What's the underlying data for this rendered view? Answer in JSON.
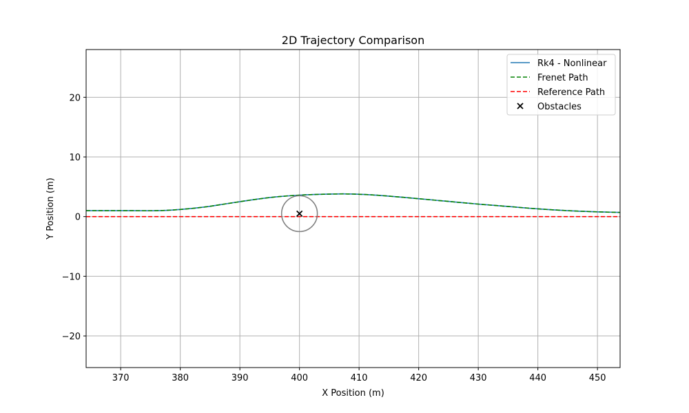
{
  "chart_data": {
    "type": "line",
    "title": "2D Trajectory Comparison",
    "xlabel": "X Position (m)",
    "ylabel": "Y Position (m)",
    "xlim": [
      364.2,
      453.8
    ],
    "ylim": [
      -25.3,
      28.0
    ],
    "xticks": [
      370,
      380,
      390,
      400,
      410,
      420,
      430,
      440,
      450
    ],
    "yticks": [
      -20,
      -10,
      0,
      10,
      20
    ],
    "grid": true,
    "legend_position": "upper right",
    "series": [
      {
        "name": "Rk4 - Nonlinear",
        "style": "solid",
        "color": "#1f77b4",
        "x": [
          364.2,
          370,
          376,
          380,
          384,
          388,
          392,
          396,
          400,
          404,
          408,
          412,
          416,
          420,
          425,
          430,
          435,
          440,
          445,
          450,
          453.8
        ],
        "y": [
          1.0,
          1.0,
          1.0,
          1.2,
          1.6,
          2.2,
          2.8,
          3.3,
          3.6,
          3.75,
          3.8,
          3.65,
          3.35,
          3.0,
          2.55,
          2.1,
          1.7,
          1.3,
          1.0,
          0.8,
          0.7
        ]
      },
      {
        "name": "Frenet Path",
        "style": "dashed",
        "color": "#008000",
        "x": [
          364.2,
          370,
          376,
          380,
          384,
          388,
          392,
          396,
          400,
          404,
          408,
          412,
          416,
          420,
          425,
          430,
          435,
          440,
          445,
          450,
          453.8
        ],
        "y": [
          1.0,
          1.0,
          1.0,
          1.2,
          1.6,
          2.2,
          2.8,
          3.3,
          3.6,
          3.75,
          3.8,
          3.65,
          3.35,
          3.0,
          2.55,
          2.1,
          1.7,
          1.3,
          1.0,
          0.8,
          0.7
        ]
      },
      {
        "name": "Reference Path",
        "style": "dashed",
        "color": "#ff0000",
        "x": [
          364.2,
          453.8
        ],
        "y": [
          0,
          0
        ]
      }
    ],
    "obstacles": {
      "name": "Obstacles",
      "marker": "x",
      "color": "#000000",
      "points": [
        {
          "x": 400,
          "y": 0.5,
          "radius": 3.0
        }
      ]
    },
    "obstacle_circle_color": "#808080"
  }
}
